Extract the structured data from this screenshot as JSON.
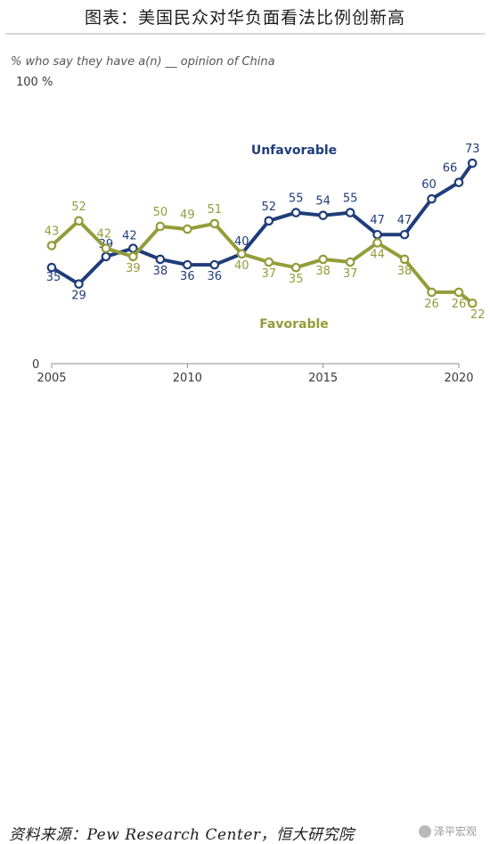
{
  "page_title": "图表：美国民众对华负面看法比例创新高",
  "source": "资料来源：Pew Research Center，恒大研究院",
  "watermark": "泽平宏观",
  "chart_data": {
    "type": "line",
    "title": "",
    "subtitle": "% who say they have a(n) __ opinion of China",
    "y_top_label": "100 %",
    "xlabel": "",
    "ylabel": "",
    "xlim": [
      2005,
      2020
    ],
    "ylim": [
      0,
      100
    ],
    "x_ticks": [
      {
        "value": 2005,
        "label": "2005"
      },
      {
        "value": 2010,
        "label": "2010"
      },
      {
        "value": 2015,
        "label": "2015"
      },
      {
        "value": 2020,
        "label": "2020"
      }
    ],
    "y_ticks": [
      {
        "value": 0,
        "label": "0"
      },
      {
        "value": 100,
        "label": "100 %"
      }
    ],
    "grid": false,
    "series": [
      {
        "name": "Unfavorable",
        "color": "#1f3d7a",
        "x": [
          2005,
          2006,
          2007,
          2008,
          2009,
          2010,
          2011,
          2012,
          2013,
          2014,
          2015,
          2016,
          2017,
          2018,
          2019,
          2020,
          2020.5
        ],
        "values": [
          35,
          29,
          39,
          42,
          38,
          36,
          36,
          40,
          52,
          55,
          54,
          55,
          47,
          47,
          60,
          66,
          73
        ],
        "labels": [
          "35",
          "29",
          "39",
          "42",
          "38",
          "36",
          "36",
          "40",
          "52",
          "55",
          "54",
          "55",
          "47",
          "47",
          "60",
          "66",
          "73"
        ]
      },
      {
        "name": "Favorable",
        "color": "#929d3a",
        "x": [
          2005,
          2006,
          2007,
          2008,
          2009,
          2010,
          2011,
          2012,
          2013,
          2014,
          2015,
          2016,
          2017,
          2018,
          2019,
          2020,
          2020.5
        ],
        "values": [
          43,
          52,
          42,
          39,
          50,
          49,
          51,
          40,
          37,
          35,
          38,
          37,
          44,
          38,
          26,
          26,
          22
        ],
        "labels": [
          "43",
          "52",
          "42",
          "39",
          "50",
          "49",
          "51",
          "40",
          "37",
          "35",
          "38",
          "37",
          "44",
          "38",
          "26",
          "26",
          "22"
        ]
      }
    ]
  }
}
